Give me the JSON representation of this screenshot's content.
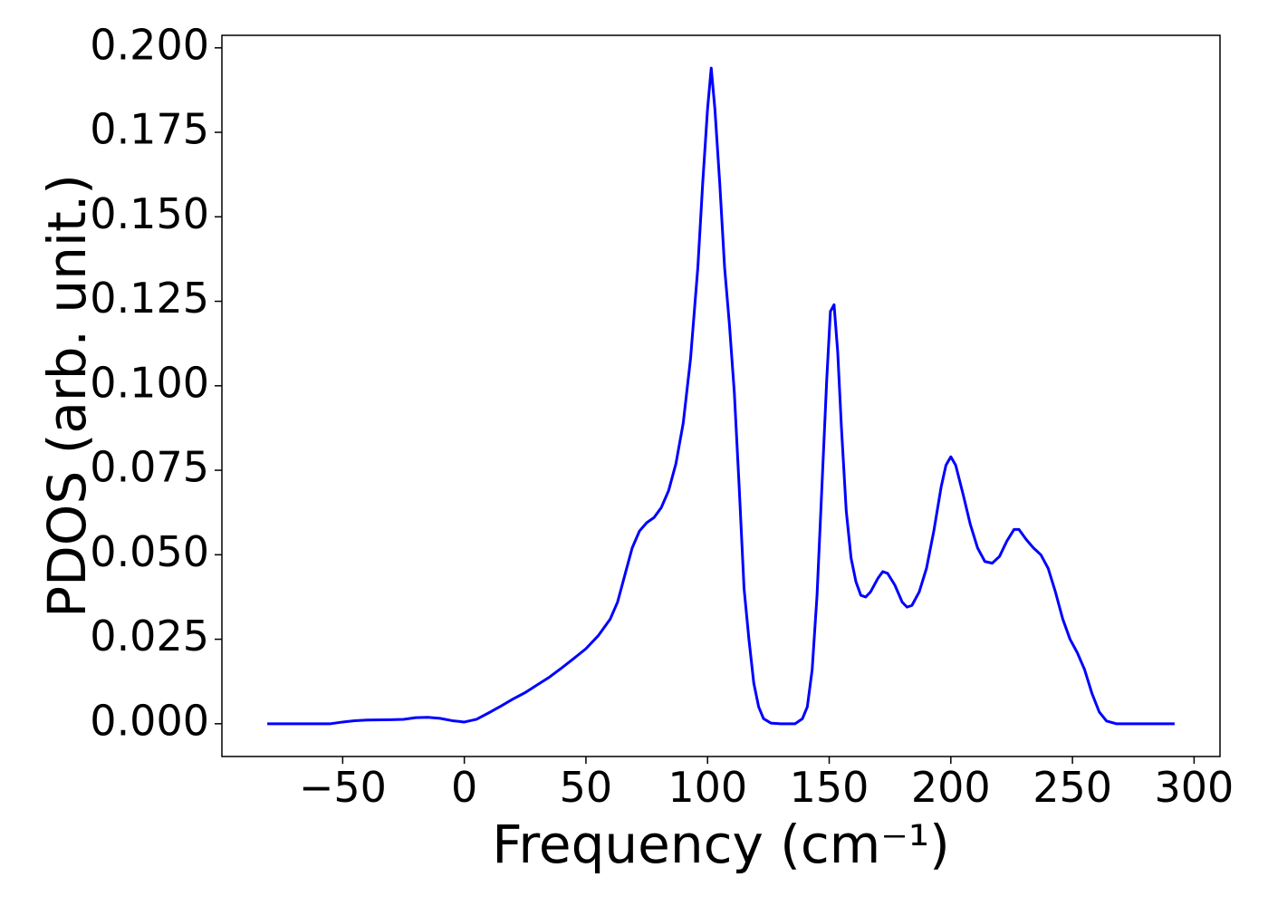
{
  "chart_data": {
    "type": "line",
    "x_label": "Frequency (cm⁻¹)",
    "y_label": "PDOS (arb. unit.)",
    "series": [
      {
        "color": "#0000ff",
        "x": [
          -81,
          -55,
          -50,
          -45,
          -40,
          -30,
          -25,
          -20,
          -15,
          -10,
          -5,
          0,
          5,
          10,
          15,
          20,
          25,
          30,
          35,
          40,
          45,
          50,
          55,
          60,
          63,
          66,
          69,
          72,
          75,
          78,
          81,
          84,
          87,
          90,
          93,
          96,
          98,
          100,
          101.5,
          103,
          105,
          107,
          109,
          111,
          113,
          115,
          117,
          119,
          121,
          123,
          126,
          130,
          136,
          139,
          141,
          143,
          145,
          147,
          149,
          150.5,
          152,
          153.5,
          155,
          157,
          159,
          161,
          163,
          165,
          167,
          170,
          172,
          174,
          177,
          180,
          182,
          184,
          187,
          190,
          193,
          196,
          198,
          200,
          202,
          205,
          208,
          211,
          214,
          217,
          220,
          223,
          226,
          228,
          231,
          234,
          237,
          240,
          243,
          246,
          249,
          252,
          255,
          258,
          261,
          264,
          268,
          292
        ],
        "values": [
          0,
          0,
          0.0005,
          0.0009,
          0.0011,
          0.0012,
          0.0013,
          0.0018,
          0.0019,
          0.0016,
          0.0009,
          0.0005,
          0.0013,
          0.0032,
          0.0052,
          0.0073,
          0.0092,
          0.0115,
          0.0138,
          0.0165,
          0.0193,
          0.0222,
          0.026,
          0.031,
          0.036,
          0.044,
          0.052,
          0.057,
          0.0595,
          0.061,
          0.064,
          0.069,
          0.077,
          0.089,
          0.108,
          0.135,
          0.16,
          0.182,
          0.194,
          0.182,
          0.16,
          0.135,
          0.118,
          0.098,
          0.07,
          0.04,
          0.025,
          0.012,
          0.005,
          0.0015,
          0.0002,
          0,
          0,
          0.0015,
          0.005,
          0.016,
          0.038,
          0.07,
          0.102,
          0.122,
          0.124,
          0.11,
          0.088,
          0.063,
          0.049,
          0.042,
          0.038,
          0.0375,
          0.039,
          0.043,
          0.045,
          0.0445,
          0.041,
          0.036,
          0.0345,
          0.035,
          0.039,
          0.046,
          0.057,
          0.07,
          0.0765,
          0.079,
          0.0765,
          0.068,
          0.059,
          0.052,
          0.048,
          0.0475,
          0.0495,
          0.054,
          0.0575,
          0.0575,
          0.0545,
          0.052,
          0.05,
          0.046,
          0.039,
          0.031,
          0.025,
          0.021,
          0.016,
          0.009,
          0.0035,
          0.0008,
          0,
          0
        ]
      }
    ],
    "xlim": [
      -99.65,
      310.65
    ],
    "ylim": [
      -0.0097,
      0.2037
    ],
    "xticks": [
      {
        "value": -50,
        "label": "−50"
      },
      0,
      50,
      100,
      150,
      200,
      250,
      300
    ],
    "yticks": [
      {
        "value": 0,
        "label": "0.000"
      },
      {
        "value": 0.025,
        "label": "0.025"
      },
      {
        "value": 0.05,
        "label": "0.050"
      },
      {
        "value": 0.075,
        "label": "0.075"
      },
      {
        "value": 0.1,
        "label": "0.100"
      },
      {
        "value": 0.125,
        "label": "0.125"
      },
      {
        "value": 0.15,
        "label": "0.150"
      },
      {
        "value": 0.175,
        "label": "0.175"
      },
      {
        "value": 0.2,
        "label": "0.200"
      }
    ]
  }
}
